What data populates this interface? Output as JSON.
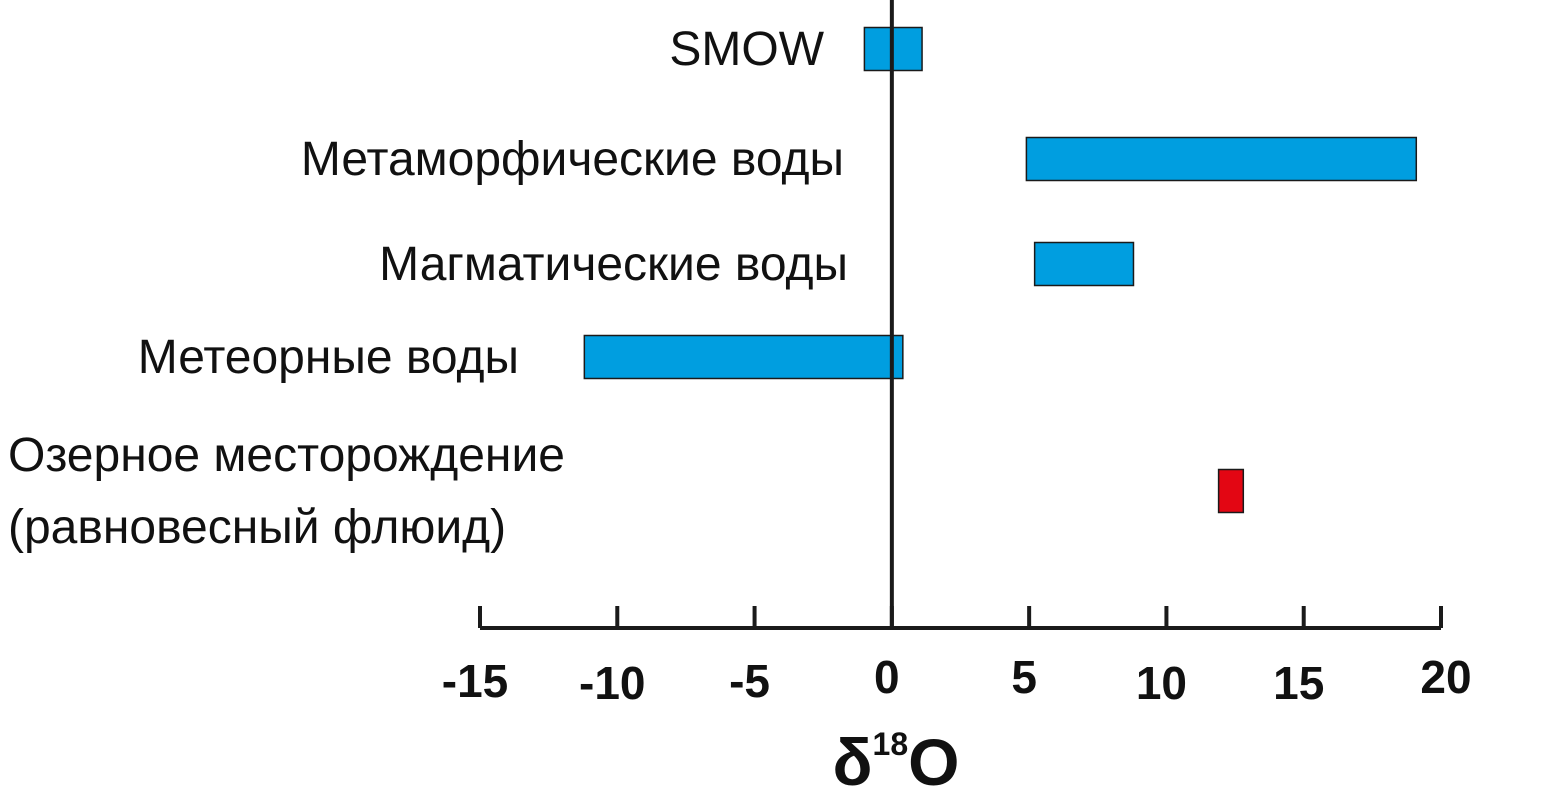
{
  "chart_data": {
    "type": "bar",
    "orientation": "horizontal-range",
    "xlabel_main": "δ",
    "xlabel_sup": "18",
    "xlabel_tail": "O",
    "xlim": [
      -15,
      20
    ],
    "xticks": [
      -15,
      -10,
      -5,
      0,
      5,
      10,
      15,
      20
    ],
    "xtick_labels": [
      "-15",
      "-10",
      "-5",
      "0",
      "5",
      "10",
      "15",
      "20"
    ],
    "bars": [
      {
        "label_lines": [
          "SMOW"
        ],
        "start": -1,
        "end": 1.1,
        "color": "#009ee0",
        "label_color": "#111111"
      },
      {
        "label_lines": [
          "Метаморфические воды"
        ],
        "start": 4.9,
        "end": 19.1,
        "color": "#009ee0",
        "label_color": "#111111"
      },
      {
        "label_lines": [
          "Магматические воды"
        ],
        "start": 5.2,
        "end": 8.8,
        "color": "#009ee0",
        "label_color": "#111111"
      },
      {
        "label_lines": [
          "Метеорные воды"
        ],
        "start": -11.2,
        "end": 0.4,
        "color": "#009ee0",
        "label_color": "#111111"
      },
      {
        "label_lines": [
          "Озерное месторождение",
          "(равновесный флюид)"
        ],
        "start": 11.9,
        "end": 12.8,
        "color": "#e30613",
        "label_color": "#ff0000"
      }
    ]
  }
}
